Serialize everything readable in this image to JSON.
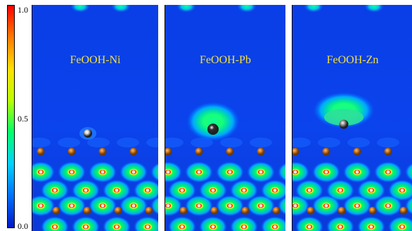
{
  "colorbar": {
    "ticks": [
      "1.0",
      "0.5",
      "0.0"
    ],
    "colors": [
      "#0018c8",
      "#0070ff",
      "#00d0ff",
      "#00ff6a",
      "#b8ff00",
      "#ffe000",
      "#ff7a00",
      "#ff0000"
    ]
  },
  "panels": [
    {
      "label": "FeOOH-Ni",
      "dopant": "Ni",
      "adsorbate_color": "#d8d8d8",
      "halo": "small"
    },
    {
      "label": "FeOOH-Pb",
      "dopant": "Pb",
      "adsorbate_color": "#303030",
      "halo": "medium"
    },
    {
      "label": "FeOOH-Zn",
      "dopant": "Zn",
      "adsorbate_color": "#a0a0a0",
      "halo": "large"
    }
  ]
}
